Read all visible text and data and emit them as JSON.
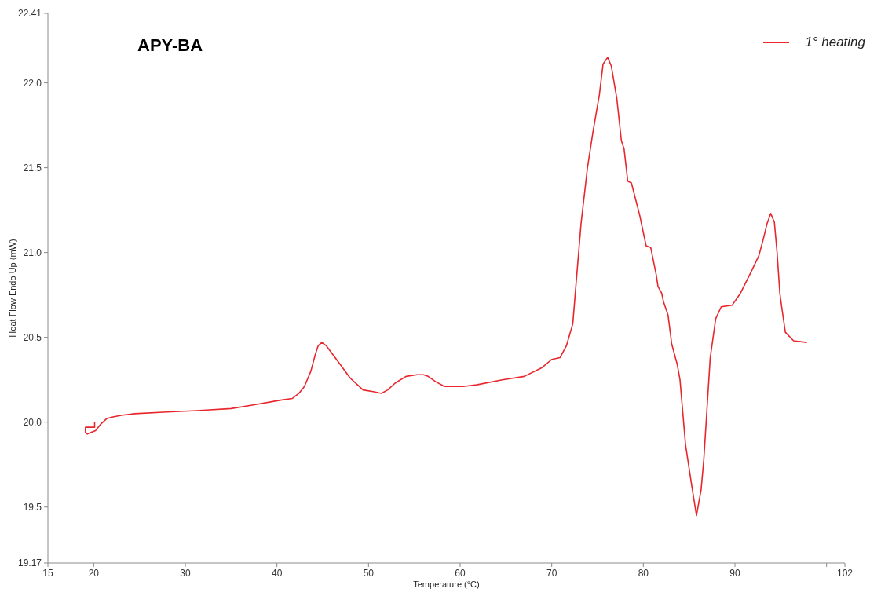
{
  "chart_data": {
    "type": "line",
    "title": "APY-BA",
    "xlabel": "Temperature (°C)",
    "ylabel": "Heat Flow Endo Up (mW)",
    "xlim": [
      15,
      102
    ],
    "ylim": [
      19.17,
      22.41
    ],
    "xticks": [
      15,
      20,
      30,
      40,
      50,
      60,
      70,
      80,
      90,
      {
        "value": 100,
        "label": null
      },
      102
    ],
    "yticks": [
      19.17,
      19.5,
      {
        "value": 20,
        "label": "20.0"
      },
      20.5,
      {
        "value": 21,
        "label": "21.0"
      },
      21.5,
      {
        "value": 22,
        "label": "22.0"
      },
      22.41
    ],
    "grid": false,
    "legend": "top right",
    "marker": "none",
    "line_style": "solid",
    "series": [
      {
        "name": "1° heating",
        "color": "#e8262c",
        "x": [
          20.1,
          20.1,
          19.1,
          19.1,
          19.3,
          19.7,
          20.2,
          20.8,
          21.4,
          22.0,
          23.0,
          24.5,
          28.0,
          32.0,
          35.0,
          37.3,
          40.4,
          41.7,
          42.4,
          43.0,
          43.7,
          44.2,
          44.5,
          44.9,
          45.4,
          46.5,
          48.0,
          48.8,
          49.4,
          50.5,
          51.4,
          52.1,
          52.9,
          54.1,
          55.3,
          56.0,
          56.5,
          57.3,
          58.3,
          60.3,
          61.8,
          64.6,
          67.0,
          68.9,
          70.0,
          70.9,
          71.6,
          72.3,
          72.6,
          73.2,
          73.9,
          74.5,
          75.2,
          75.6,
          76.1,
          76.5,
          77.1,
          77.6,
          77.9,
          78.3,
          78.7,
          79.6,
          80.3,
          80.8,
          81.4,
          81.6,
          82.0,
          82.2,
          82.7,
          83.1,
          83.7,
          84.0,
          84.6,
          85.3,
          85.8,
          86.3,
          86.6,
          87.3,
          87.9,
          88.5,
          89.7,
          90.6,
          91.8,
          92.6,
          93.1,
          93.5,
          93.9,
          94.3,
          94.6,
          94.9,
          95.1,
          95.5,
          96.4,
          97.8
        ],
        "values": [
          20.0,
          19.97,
          19.97,
          19.94,
          19.93,
          19.94,
          19.95,
          19.99,
          20.02,
          20.03,
          20.04,
          20.05,
          20.06,
          20.07,
          20.08,
          20.1,
          20.13,
          20.14,
          20.17,
          20.21,
          20.3,
          20.4,
          20.45,
          20.47,
          20.45,
          20.37,
          20.26,
          20.22,
          20.19,
          20.18,
          20.17,
          20.19,
          20.23,
          20.27,
          20.28,
          20.28,
          20.27,
          20.24,
          20.21,
          20.21,
          20.22,
          20.25,
          20.27,
          20.32,
          20.37,
          20.38,
          20.45,
          20.58,
          20.78,
          21.17,
          21.5,
          21.71,
          21.93,
          22.11,
          22.15,
          22.1,
          21.91,
          21.66,
          21.61,
          21.42,
          21.41,
          21.22,
          21.04,
          21.03,
          20.87,
          20.8,
          20.76,
          20.71,
          20.63,
          20.46,
          20.34,
          20.25,
          19.87,
          19.62,
          19.45,
          19.6,
          19.78,
          20.38,
          20.61,
          20.68,
          20.69,
          20.76,
          20.89,
          20.98,
          21.08,
          21.17,
          21.23,
          21.18,
          21.0,
          20.76,
          20.68,
          20.53,
          20.48,
          20.47
        ]
      }
    ]
  }
}
